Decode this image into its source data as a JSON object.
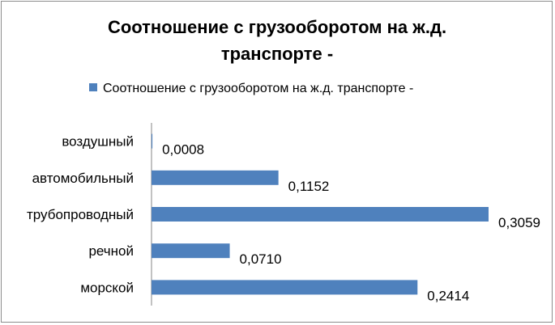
{
  "chart_data": {
    "type": "bar",
    "orientation": "horizontal",
    "title": "Соотношение  с грузооборотом  на ж.д. транспорте  -",
    "title_lines": [
      "Соотношение  с грузооборотом  на ж.д.",
      "транспорте  -"
    ],
    "categories": [
      "воздушный",
      "автомобильный",
      "трубопроводный",
      "речной",
      "морской"
    ],
    "series": [
      {
        "name": "Соотношение  с грузооборотом на ж.д. транспорте -",
        "values": [
          0.0008,
          0.1152,
          0.3059,
          0.071,
          0.2414
        ],
        "value_labels": [
          "0,0008",
          "0,1152",
          "0,3059",
          "0,0710",
          "0,2414"
        ],
        "color": "#4f81bd"
      }
    ],
    "xlim": [
      0,
      0.32
    ],
    "legend_position": "top",
    "grid": false
  }
}
